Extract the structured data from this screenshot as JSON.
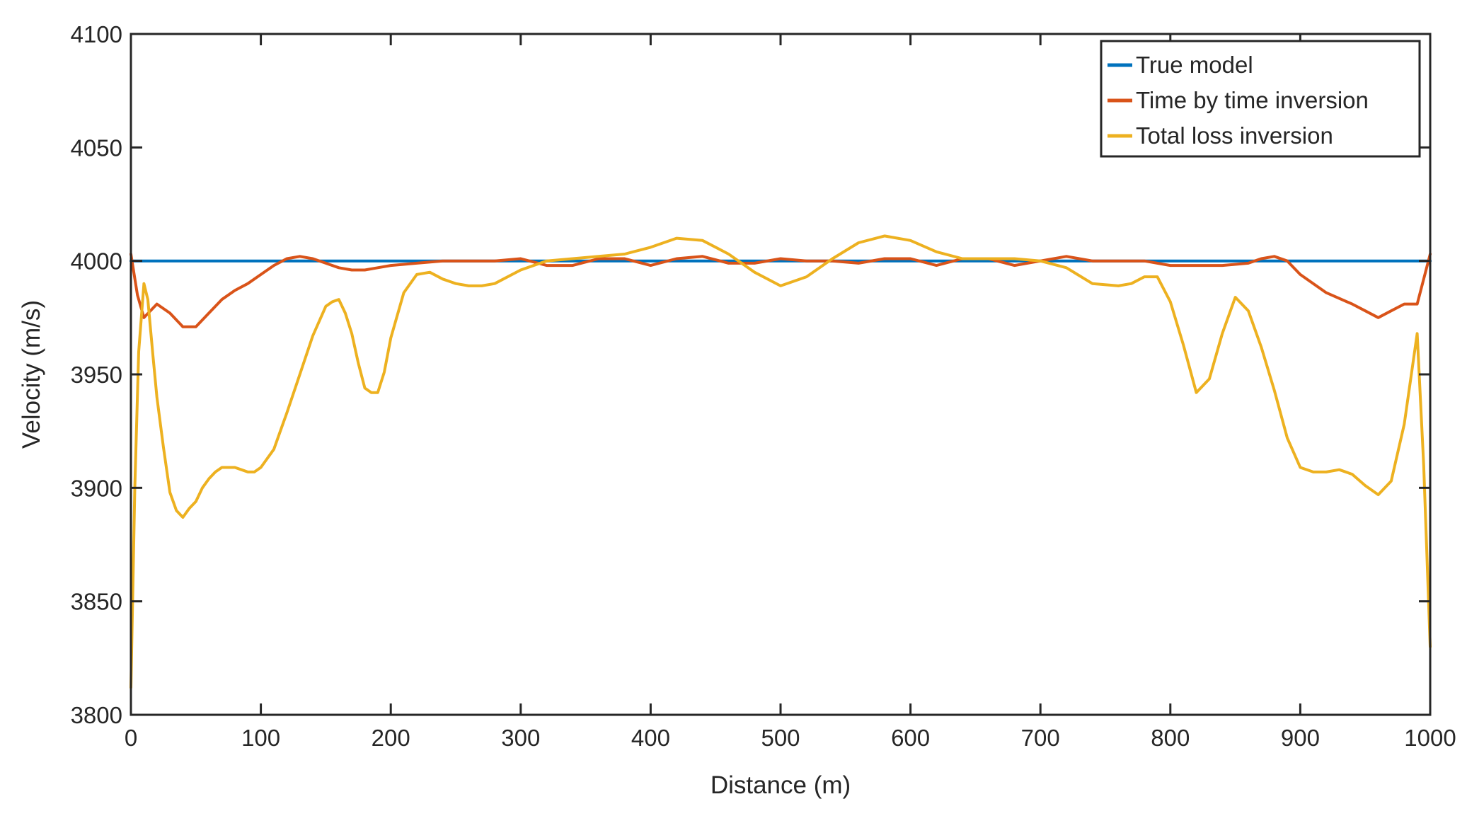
{
  "chart_data": {
    "type": "line",
    "xlabel": "Distance (m)",
    "ylabel": "Velocity (m/s)",
    "xlim": [
      0,
      1000
    ],
    "ylim": [
      3800,
      4100
    ],
    "xticks": [
      0,
      100,
      200,
      300,
      400,
      500,
      600,
      700,
      800,
      900,
      1000
    ],
    "yticks": [
      3800,
      3850,
      3900,
      3950,
      4000,
      4050,
      4100
    ],
    "grid": false,
    "legend_position": "top-right",
    "series": [
      {
        "name": "True model",
        "color": "#0072BD",
        "x": [
          0,
          1000
        ],
        "y": [
          4000,
          4000
        ]
      },
      {
        "name": "Time by time inversion",
        "color": "#D95319",
        "x": [
          0,
          5,
          10,
          20,
          30,
          40,
          50,
          60,
          70,
          80,
          90,
          100,
          110,
          120,
          130,
          140,
          150,
          160,
          170,
          180,
          190,
          200,
          220,
          240,
          260,
          280,
          300,
          320,
          340,
          360,
          380,
          400,
          420,
          440,
          460,
          480,
          500,
          520,
          540,
          560,
          580,
          600,
          620,
          640,
          660,
          680,
          700,
          720,
          740,
          760,
          780,
          800,
          820,
          840,
          860,
          870,
          880,
          890,
          900,
          920,
          940,
          950,
          960,
          970,
          980,
          990,
          1000
        ],
        "y": [
          4003,
          3985,
          3975,
          3981,
          3977,
          3971,
          3971,
          3977,
          3983,
          3987,
          3990,
          3994,
          3998,
          4001,
          4002,
          4001,
          3999,
          3997,
          3996,
          3996,
          3997,
          3998,
          3999,
          4000,
          4000,
          4000,
          4001,
          3998,
          3998,
          4001,
          4001,
          3998,
          4001,
          4002,
          3999,
          3999,
          4001,
          4000,
          4000,
          3999,
          4001,
          4001,
          3998,
          4001,
          4001,
          3998,
          4000,
          4002,
          4000,
          4000,
          4000,
          3998,
          3998,
          3998,
          3999,
          4001,
          4002,
          4000,
          3994,
          3986,
          3981,
          3978,
          3975,
          3978,
          3981,
          3981,
          4003
        ]
      },
      {
        "name": "Total loss inversion",
        "color": "#EDB120",
        "x": [
          0,
          3,
          6,
          10,
          13,
          17,
          20,
          25,
          30,
          35,
          40,
          45,
          50,
          55,
          60,
          65,
          70,
          75,
          80,
          85,
          90,
          95,
          100,
          105,
          110,
          115,
          120,
          130,
          140,
          150,
          155,
          160,
          165,
          170,
          175,
          180,
          185,
          190,
          195,
          200,
          210,
          220,
          230,
          240,
          250,
          260,
          270,
          280,
          300,
          320,
          340,
          360,
          380,
          400,
          420,
          440,
          460,
          480,
          500,
          520,
          540,
          560,
          580,
          600,
          620,
          640,
          660,
          680,
          700,
          720,
          740,
          760,
          770,
          780,
          790,
          800,
          810,
          820,
          830,
          840,
          850,
          860,
          870,
          880,
          890,
          900,
          910,
          920,
          930,
          940,
          950,
          960,
          970,
          980,
          990,
          995,
          1000
        ],
        "y": [
          3812,
          3900,
          3960,
          3990,
          3983,
          3958,
          3940,
          3918,
          3898,
          3890,
          3887,
          3891,
          3894,
          3900,
          3904,
          3907,
          3909,
          3909,
          3909,
          3908,
          3907,
          3907,
          3909,
          3913,
          3917,
          3925,
          3933,
          3950,
          3967,
          3980,
          3982,
          3983,
          3977,
          3968,
          3955,
          3944,
          3942,
          3942,
          3951,
          3966,
          3986,
          3994,
          3995,
          3992,
          3990,
          3989,
          3989,
          3990,
          3996,
          4000,
          4001,
          4002,
          4003,
          4006,
          4010,
          4009,
          4003,
          3995,
          3989,
          3993,
          4001,
          4008,
          4011,
          4009,
          4004,
          4001,
          4001,
          4001,
          4000,
          3997,
          3990,
          3989,
          3990,
          3993,
          3993,
          3982,
          3963,
          3942,
          3948,
          3968,
          3984,
          3978,
          3962,
          3943,
          3922,
          3909,
          3907,
          3907,
          3908,
          3906,
          3901,
          3897,
          3903,
          3928,
          3968,
          3910,
          3830
        ]
      }
    ]
  }
}
